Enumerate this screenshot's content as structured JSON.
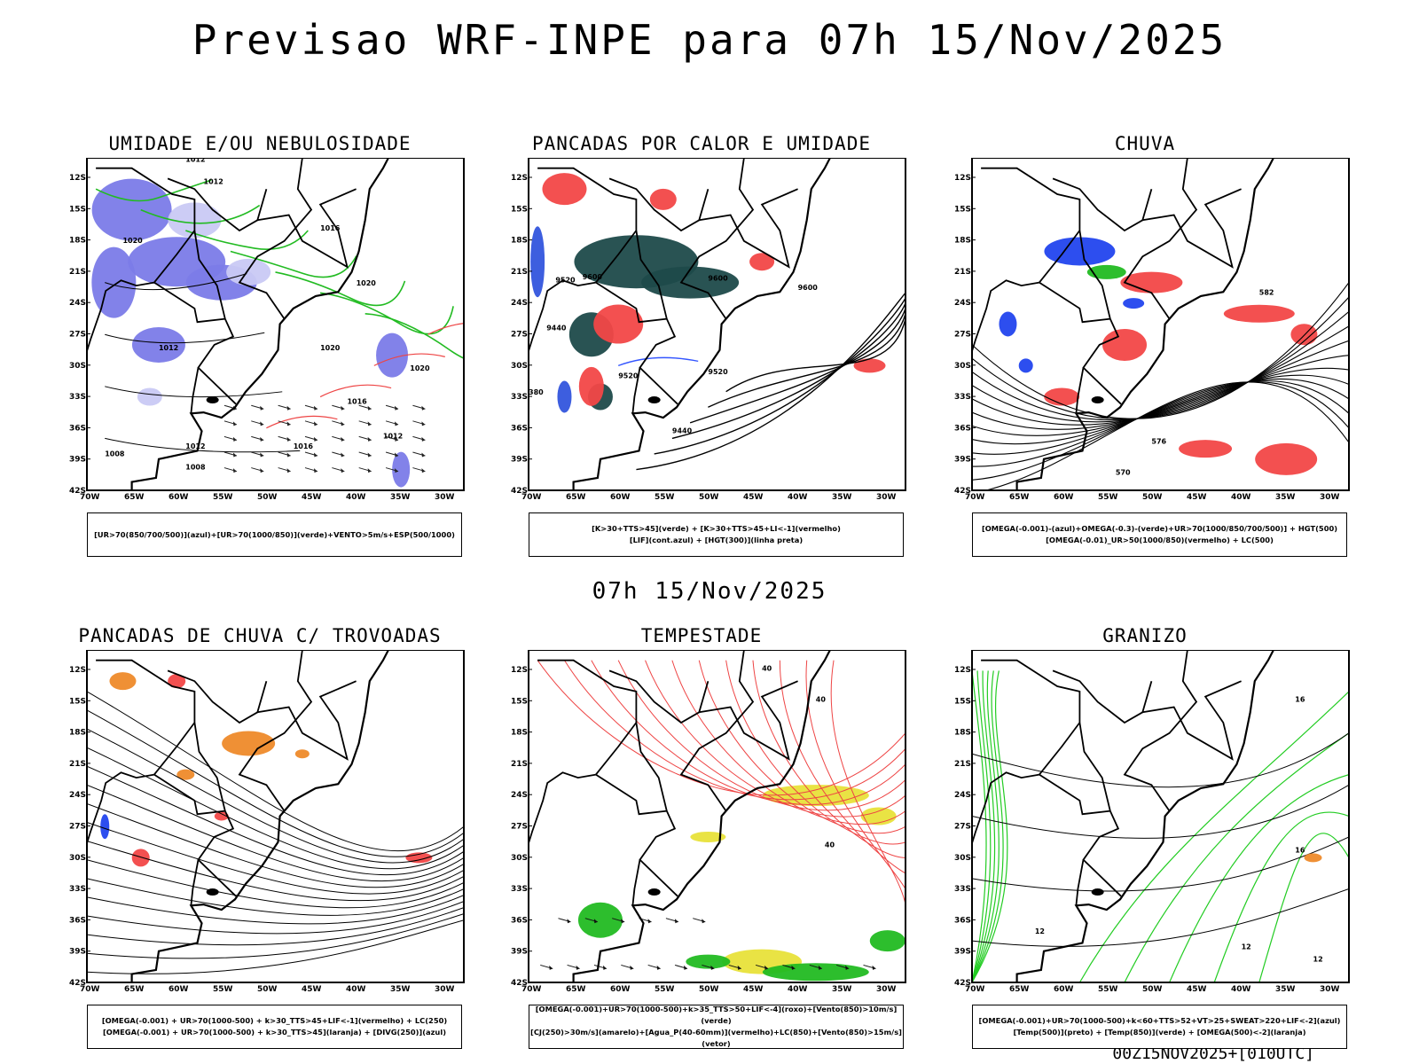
{
  "header": {
    "title": "Previsao WRF-INPE  para 07h 15/Nov/2025"
  },
  "middle": {
    "title": "07h 15/Nov/2025"
  },
  "footer": {
    "stamp": "00Z15NOV2025+[010UTC]"
  },
  "axes": {
    "lat_labels": [
      "12S",
      "15S",
      "18S",
      "21S",
      "24S",
      "27S",
      "30S",
      "33S",
      "36S",
      "39S",
      "42S"
    ],
    "lon_labels": [
      "70W",
      "65W",
      "60W",
      "55W",
      "50W",
      "45W",
      "40W",
      "35W",
      "30W"
    ]
  },
  "panels": [
    {
      "id": "umidade",
      "title": "UMIDADE E/OU NEBULOSIDADE",
      "legend": [
        "[UR>70(850/700/500)](azul)+[UR>70(1000/850)](verde)+VENTO>5m/s+ESP(500/1000)"
      ],
      "contour_labels": [
        "1012",
        "1012",
        "1016",
        "1020",
        "1020",
        "1012",
        "1020",
        "1016",
        "1012",
        "1008",
        "1008",
        "1016",
        "1020",
        "1012"
      ]
    },
    {
      "id": "pancadas-calor",
      "title": "PANCADAS POR CALOR E UMIDADE",
      "legend": [
        "[K>30+TTS>45](verde)  +  [K>30+TTS>45+LI<-1](vermelho)",
        "[LIF](cont.azul)  +  [HGT(300)](linha preta)"
      ],
      "contour_labels": [
        "9520",
        "9600",
        "9600",
        "9600",
        "9440",
        "9520",
        "9520",
        "9440",
        "380"
      ]
    },
    {
      "id": "chuva",
      "title": "CHUVA",
      "legend": [
        "[OMEGA(-0.001)-(azul)+OMEGA(-0.3)-(verde)+UR>70(1000/850/700/500)]  +  HGT(500)",
        "[OMEGA(-0.01)_UR>50(1000/850)(vermelho)  +  LC(500)"
      ],
      "contour_labels": [
        "582",
        "576",
        "570"
      ]
    },
    {
      "id": "pancadas-trovoadas",
      "title": "PANCADAS DE CHUVA C/ TROVOADAS",
      "legend": [
        "[OMEGA(-0.001)  +  UR>70(1000-500)  +  k>30_TTS>45+LIF<-1](vermelho)  +  LC(250)",
        "[OMEGA(-0.001)  +  UR>70(1000-500)  +  k>30_TTS>45](laranja)  +  [DIVG(250)](azul)"
      ],
      "contour_labels": []
    },
    {
      "id": "tempestade",
      "title": "TEMPESTADE",
      "legend": [
        "[OMEGA(-0.001)+UR>70(1000-500)+k>35_TTS>50+LIF<-4](roxo)+[Vento(850)>10m/s](verde)",
        "[CJ(250)>30m/s](amarelo)+[Agua_P(40-60mm)](vermelho)+LC(850)+[Vento(850)>15m/s](vetor)"
      ],
      "contour_labels": [
        "40",
        "40",
        "40"
      ]
    },
    {
      "id": "granizo",
      "title": "GRANIZO",
      "legend": [
        "[OMEGA(-0.001)+UR>70(1000-500)+k<60+TTS>52+VT>25+SWEAT>220+LIF<-2](azul)",
        "[Temp(500)](preto)  +  [Temp(850)](verde)  +  [OMEGA(500)<-2](laranja)"
      ],
      "contour_labels": [
        "12",
        "12",
        "16",
        "16",
        "12"
      ]
    }
  ]
}
